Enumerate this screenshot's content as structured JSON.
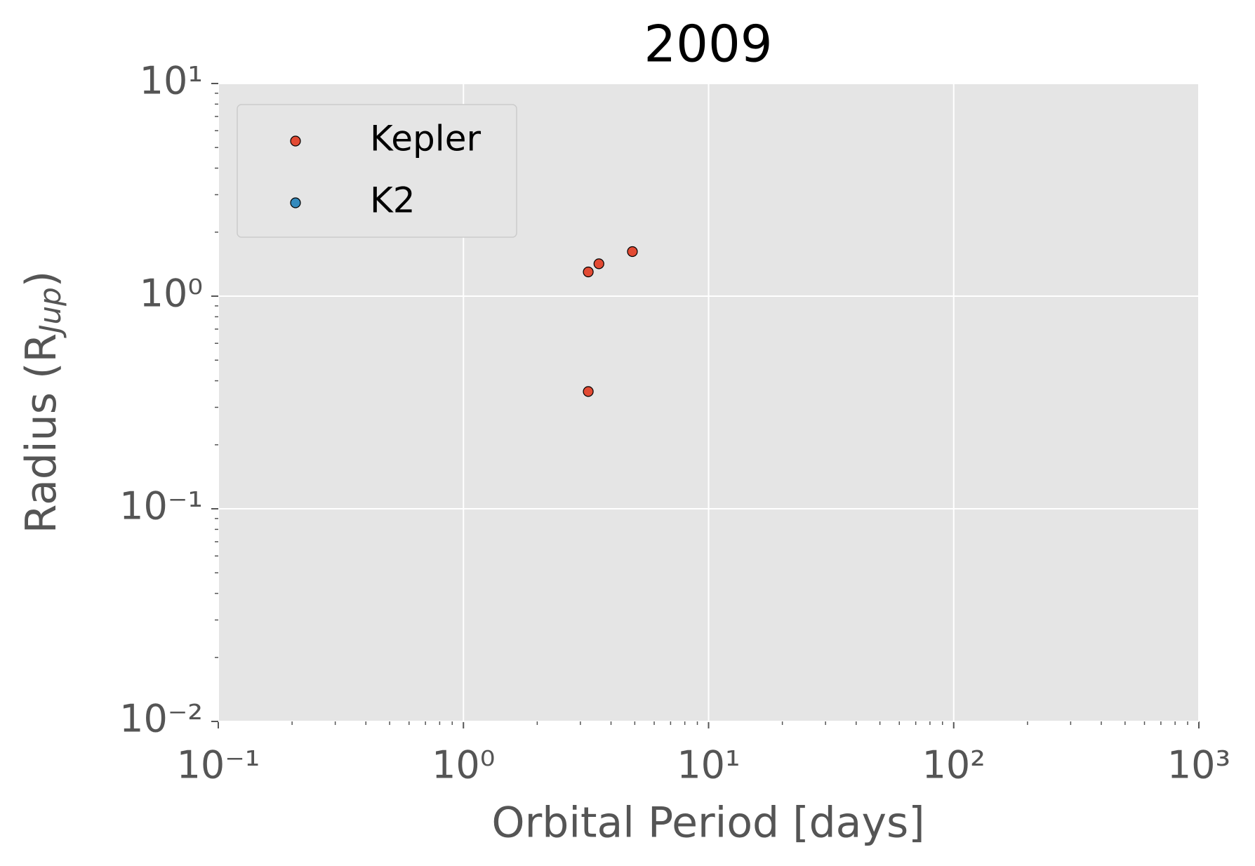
{
  "chart_data": {
    "type": "scatter",
    "title": "2009",
    "x_label": "Orbital Period [days]",
    "y_label": [
      "Radius (R",
      "Jup",
      ")"
    ],
    "series": [
      {
        "name": "Kepler",
        "color": "#E24A33",
        "x": [
          3.23,
          3.57,
          4.89,
          3.23
        ],
        "values": [
          1.3,
          1.42,
          1.62,
          0.356
        ]
      },
      {
        "name": "K2",
        "color": "#348ABD",
        "x": [],
        "values": []
      }
    ],
    "xlim": [
      0.1,
      1000
    ],
    "ylim": [
      0.01,
      10
    ],
    "xticks": [
      {
        "value": 0.1,
        "label": "10⁻¹"
      },
      {
        "value": 1,
        "label": "10⁰"
      },
      {
        "value": 10,
        "label": "10¹"
      },
      {
        "value": 100,
        "label": "10²"
      },
      {
        "value": 1000,
        "label": "10³"
      }
    ],
    "yticks": [
      {
        "value": 0.01,
        "label": "10⁻²"
      },
      {
        "value": 0.1,
        "label": "10⁻¹"
      },
      {
        "value": 1,
        "label": "10⁰"
      },
      {
        "value": 10,
        "label": "10¹"
      }
    ],
    "log_x": true,
    "log_y": true,
    "grid": true,
    "minor_ticks": true,
    "legend": "upper left"
  }
}
